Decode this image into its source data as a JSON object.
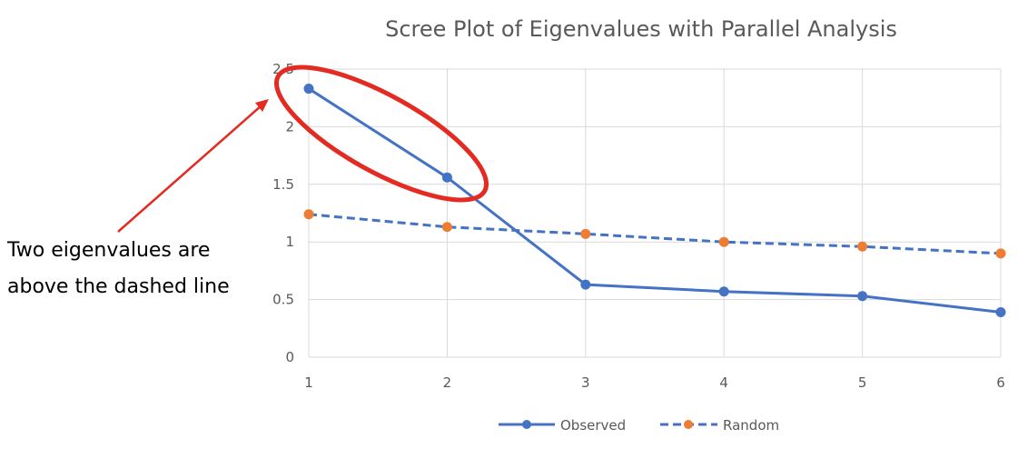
{
  "chart_data": {
    "type": "line",
    "title": "Scree Plot of Eigenvalues with Parallel Analysis",
    "xlabel": "",
    "ylabel": "",
    "categories": [
      "1",
      "2",
      "3",
      "4",
      "5",
      "6"
    ],
    "x": [
      1,
      2,
      3,
      4,
      5,
      6
    ],
    "ylim": [
      0,
      2.5
    ],
    "yticks": [
      "0",
      "0.5",
      "1",
      "1.5",
      "2",
      "2.5"
    ],
    "grid": true,
    "legend_position": "bottom",
    "series": [
      {
        "name": "Observed",
        "values": [
          2.33,
          1.56,
          0.63,
          0.57,
          0.53,
          0.39
        ],
        "color": "#4472C4",
        "dash": "solid"
      },
      {
        "name": "Random",
        "values": [
          1.24,
          1.13,
          1.07,
          1.0,
          0.96,
          0.9
        ],
        "color": "#ED7D31",
        "line_color": "#4472C4",
        "dash": "dashed"
      }
    ],
    "annotations": {
      "note_lines": [
        "Two eigenvalues are",
        "above the dashed line"
      ],
      "highlight_color": "#E32B22"
    }
  }
}
